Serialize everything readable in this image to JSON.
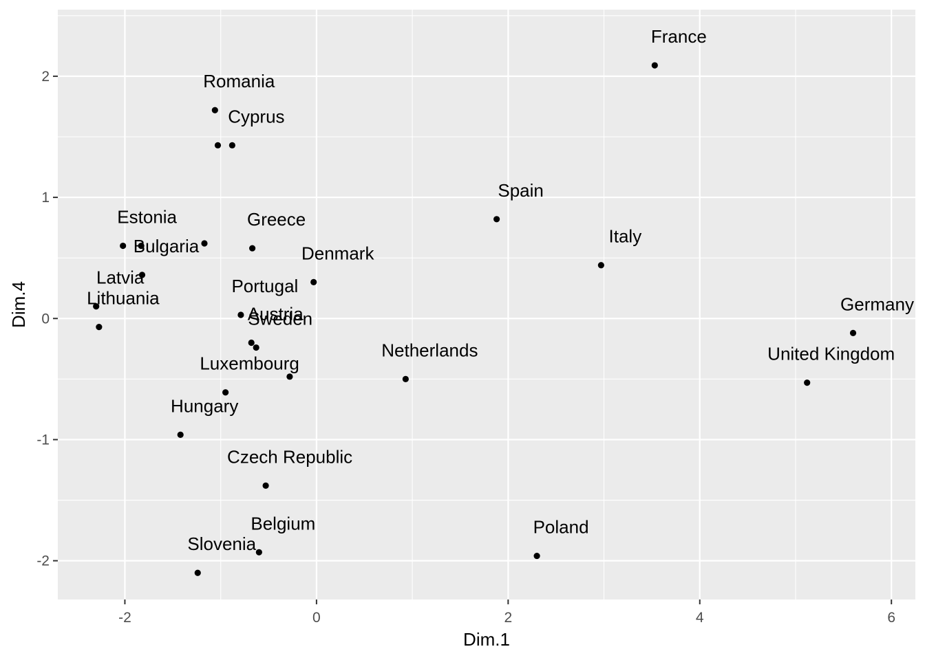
{
  "chart_data": {
    "type": "scatter",
    "title": "",
    "xlabel": "Dim.1",
    "ylabel": "Dim.4",
    "xlim": [
      -2.7,
      6.25
    ],
    "ylim": [
      -2.32,
      2.55
    ],
    "x_ticks": [
      -2,
      0,
      2,
      4,
      6
    ],
    "x_tick_labels": [
      "-2",
      "0",
      "2",
      "4",
      "6"
    ],
    "y_ticks": [
      -2,
      -1,
      0,
      1,
      2
    ],
    "y_tick_labels": [
      "-2",
      "-1",
      "0",
      "1",
      "2"
    ],
    "grid": true,
    "legend": "none",
    "points": [
      {
        "label": "France",
        "x": 3.53,
        "y": 2.09
      },
      {
        "label": "Romania",
        "x": -1.06,
        "y": 1.72
      },
      {
        "label": "Cyprus",
        "x": -0.88,
        "y": 1.43
      },
      {
        "label": "",
        "x": -1.03,
        "y": 1.43
      },
      {
        "label": "Spain",
        "x": 1.88,
        "y": 0.82
      },
      {
        "label": "Estonia",
        "x": -2.02,
        "y": 0.6
      },
      {
        "label": "Bulgaria",
        "x": -1.82,
        "y": 0.36
      },
      {
        "label": "",
        "x": -1.83,
        "y": 0.6
      },
      {
        "label": "Greece",
        "x": -0.67,
        "y": 0.58
      },
      {
        "label": "",
        "x": -1.17,
        "y": 0.62
      },
      {
        "label": "Italy",
        "x": 2.97,
        "y": 0.44
      },
      {
        "label": "Denmark",
        "x": -0.03,
        "y": 0.3
      },
      {
        "label": "Latvia",
        "x": -2.3,
        "y": 0.1
      },
      {
        "label": "Lithuania",
        "x": -2.27,
        "y": -0.07
      },
      {
        "label": "Portugal",
        "x": -0.79,
        "y": 0.03
      },
      {
        "label": "Austria",
        "x": -0.68,
        "y": -0.2
      },
      {
        "label": "Sweden",
        "x": -0.63,
        "y": -0.24
      },
      {
        "label": "Luxembourg",
        "x": -0.95,
        "y": -0.61
      },
      {
        "label": "",
        "x": -0.28,
        "y": -0.48
      },
      {
        "label": "Netherlands",
        "x": 0.93,
        "y": -0.5
      },
      {
        "label": "Germany",
        "x": 5.6,
        "y": -0.12
      },
      {
        "label": "United Kingdom",
        "x": 5.12,
        "y": -0.53
      },
      {
        "label": "Hungary",
        "x": -1.42,
        "y": -0.96
      },
      {
        "label": "Czech Republic",
        "x": -0.53,
        "y": -1.38
      },
      {
        "label": "Belgium",
        "x": -0.6,
        "y": -1.93
      },
      {
        "label": "Slovenia",
        "x": -1.24,
        "y": -2.1
      },
      {
        "label": "Poland",
        "x": 2.3,
        "y": -1.96
      }
    ]
  }
}
